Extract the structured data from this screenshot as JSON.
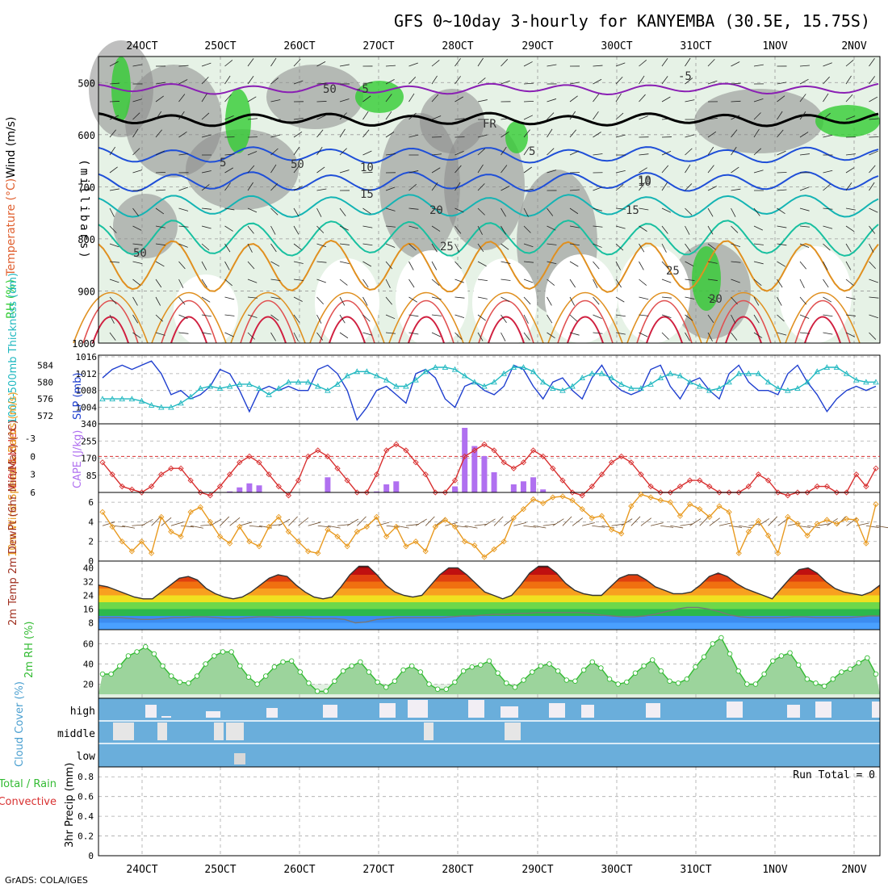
{
  "title": "GFS 0~10day 3-hourly for KANYEMBA (30.5E, 15.75S)",
  "credit": "GrADS: COLA/IGES",
  "colors": {
    "rh_green": "#33cc33",
    "rh_gray": "#8a8a8a",
    "temp_purple": "#8a1fb4",
    "temp_blue": "#1f4fd8",
    "temp_teal": "#14b4b4",
    "temp_orange": "#e09020",
    "temp_red": "#d02040",
    "slp_blue": "#1f3fcf",
    "thick_cyan": "#20b8c0",
    "li_red": "#d83030",
    "cape_purple": "#b070f0",
    "wind_orange": "#e89a20",
    "rh2m_green": "#33bb33",
    "cloud_blue": "#6aaedb"
  },
  "chart_data": [
    {
      "type": "heatmap",
      "name": "upper-air cross-section",
      "x_tick_labels": [
        "24OCT",
        "25OCT",
        "26OCT",
        "27OCT",
        "28OCT",
        "29OCT",
        "30OCT",
        "31OCT",
        "1NOV",
        "2NOV"
      ],
      "ylabel": "(millibars)",
      "yticks": [
        500,
        600,
        700,
        800,
        900,
        1000
      ],
      "yrange": [
        450,
        1000
      ],
      "side_labels": [
        "RH (%)",
        "Temperature (°C)",
        "Wind (m/s)"
      ],
      "temperature_contours": [
        {
          "label": "-5",
          "color_key": "temp_purple"
        },
        {
          "label": "FR",
          "color_key": "none"
        },
        {
          "label": "5",
          "color_key": "temp_blue"
        },
        {
          "label": "10",
          "color_key": "temp_blue"
        },
        {
          "label": "15",
          "color_key": "temp_teal"
        },
        {
          "label": "20",
          "color_key": "temp_teal"
        },
        {
          "label": "25",
          "color_key": "temp_orange"
        }
      ],
      "contour_labels": [
        "-5",
        "FR",
        "5",
        "10",
        "15",
        "20",
        "25",
        "10",
        "-5",
        "5",
        "10",
        "15",
        "25",
        "20",
        "50",
        "50",
        "50"
      ]
    },
    {
      "type": "line",
      "name": "SLP and thickness",
      "left_label": "1000-500mb Thickness (dm)",
      "right_label": "SLP (mb)",
      "left_ticks": [
        "572",
        "576",
        "580",
        "584"
      ],
      "right_ticks": [
        "1004",
        "1008",
        "1012",
        "1016"
      ],
      "series": [
        {
          "name": "SLP (mb)",
          "color_key": "slp_blue",
          "values": [
            1011,
            1013,
            1014,
            1013,
            1014,
            1015,
            1012,
            1007,
            1008,
            1006,
            1007,
            1009,
            1013,
            1012,
            1008,
            1003,
            1008,
            1009,
            1008,
            1009,
            1008,
            1008,
            1013,
            1014,
            1012,
            1008,
            1001,
            1004,
            1008,
            1009,
            1007,
            1005,
            1012,
            1013,
            1011,
            1006,
            1004,
            1009,
            1010,
            1008,
            1007,
            1009,
            1014,
            1013,
            1009,
            1006,
            1010,
            1011,
            1008,
            1006,
            1011,
            1014,
            1010,
            1008,
            1007,
            1008,
            1013,
            1014,
            1009,
            1006,
            1010,
            1011,
            1008,
            1006,
            1012,
            1014,
            1010,
            1008,
            1008,
            1007,
            1012,
            1014,
            1010,
            1007,
            1003,
            1006,
            1008,
            1009,
            1008,
            1009
          ],
          "marker": "none"
        },
        {
          "name": "Thickness (dm)",
          "color_key": "thick_cyan",
          "values": [
            576.0,
            576.0,
            576.0,
            576.0,
            575.5,
            574.5,
            574.0,
            574.0,
            575.0,
            576.5,
            578.5,
            579.0,
            578.5,
            579.0,
            579.5,
            579.5,
            578.5,
            577.0,
            578.5,
            580.0,
            580.0,
            580.0,
            579.0,
            578.0,
            579.5,
            581.5,
            582.5,
            582.5,
            581.5,
            580.5,
            579.0,
            579.0,
            580.5,
            582.5,
            583.5,
            583.5,
            583.0,
            581.5,
            580.0,
            579.0,
            580.0,
            582.0,
            583.5,
            583.5,
            582.5,
            580.0,
            578.5,
            578.0,
            579.0,
            581.0,
            582.0,
            582.0,
            581.0,
            579.5,
            578.5,
            578.5,
            579.5,
            581.0,
            582.0,
            581.5,
            580.0,
            579.0,
            578.0,
            578.5,
            580.0,
            582.0,
            582.0,
            582.0,
            580.0,
            578.5,
            578.0,
            578.5,
            580.0,
            582.5,
            583.5,
            583.5,
            582.0,
            580.5,
            580.0,
            580.0
          ],
          "marker": "triangle"
        }
      ]
    },
    {
      "type": "bar",
      "name": "Lifted Index and CAPE",
      "left_label": "Lifted Index",
      "right_label": "CAPE (J/kg)",
      "left_ticks": [
        "6",
        "3",
        "0",
        "-3"
      ],
      "right_ticks": [
        "85",
        "170",
        "255",
        "340"
      ],
      "series": [
        {
          "name": "Lifted Index",
          "color_key": "li_red",
          "values": [
            1,
            3,
            5,
            5.5,
            6,
            5,
            3,
            2,
            2,
            4,
            6,
            6.5,
            5,
            3,
            1,
            0,
            1,
            3,
            5,
            6.5,
            4,
            0,
            -1,
            0,
            2,
            4,
            6,
            6,
            3,
            -1,
            -2,
            -1,
            1,
            3,
            6,
            6,
            4,
            0,
            -1,
            -2,
            -1,
            1,
            2,
            1,
            -1,
            0,
            2,
            4,
            6,
            6.5,
            5,
            3,
            1,
            0,
            1,
            3,
            5,
            6,
            6,
            5,
            4,
            4,
            5,
            6,
            6,
            6,
            5,
            3,
            4,
            6,
            6.5,
            6,
            6,
            5,
            5,
            6,
            6,
            3,
            5,
            2
          ],
          "marker": "diamond"
        },
        {
          "name": "CAPE (J/kg)",
          "color_key": "cape_purple",
          "values": [
            0,
            0,
            0,
            0,
            0,
            0,
            0,
            0,
            0,
            0,
            0,
            0,
            0,
            5,
            25,
            45,
            35,
            0,
            0,
            0,
            0,
            0,
            0,
            75,
            0,
            0,
            0,
            0,
            5,
            40,
            55,
            0,
            0,
            0,
            0,
            0,
            30,
            320,
            230,
            180,
            100,
            0,
            40,
            55,
            75,
            15,
            0,
            0,
            0,
            0,
            0,
            0,
            0,
            0,
            0,
            0,
            0,
            0,
            0,
            0,
            0,
            0,
            0,
            0,
            0,
            0,
            0,
            0,
            0,
            0,
            0,
            0,
            0,
            0,
            0,
            0,
            0,
            0,
            0,
            0
          ]
        }
      ]
    },
    {
      "type": "line",
      "name": "10m wind",
      "left_label": "10m Wind Speed & Barbs (m/s)",
      "left_ticks": [
        "0",
        "2",
        "4",
        "6"
      ],
      "series": [
        {
          "name": "10m Wind Speed",
          "color_key": "wind_orange",
          "values": [
            5,
            3.5,
            2,
            1,
            2,
            0.8,
            4.5,
            3,
            2.5,
            5,
            5.5,
            4,
            2.5,
            1.8,
            3.5,
            2,
            1.5,
            3.5,
            4.5,
            3,
            2,
            1,
            0.8,
            3.2,
            2.5,
            1.5,
            3,
            3.5,
            4.5,
            2.5,
            3.5,
            1.5,
            2,
            1,
            3.5,
            4.2,
            3.5,
            2,
            1.6,
            0.4,
            1.2,
            2,
            4.4,
            5.3,
            6.3,
            5.9,
            6.5,
            6.6,
            6.2,
            5.3,
            4.4,
            4.6,
            3.2,
            2.8,
            5.6,
            6.8,
            6.5,
            6.2,
            6.0,
            4.6,
            5.8,
            5.3,
            4.5,
            5.6,
            5.0,
            0.8,
            3.0,
            4.1,
            2.6,
            0.8,
            4.5,
            3.8,
            2.6,
            3.8,
            4.2,
            3.8,
            4.3,
            4.2,
            1.8,
            5.8
          ],
          "marker": "diamond"
        }
      ]
    },
    {
      "type": "area",
      "name": "2m temperature",
      "left_label": "2m Temp 2m DewPt (6hr Min/Max) (°C)",
      "left_ticks": [
        "8",
        "16",
        "24",
        "32",
        "40"
      ],
      "series": [
        {
          "name": "2m Temp",
          "color_key": "temp_red",
          "values": [
            30,
            29,
            27,
            25,
            23,
            22,
            22,
            26,
            30,
            34,
            35,
            33,
            28,
            25,
            23,
            22,
            23,
            26,
            30,
            34,
            36,
            35,
            30,
            26,
            23,
            22,
            23,
            29,
            36,
            41,
            41,
            36,
            30,
            26,
            24,
            23,
            24,
            30,
            36,
            40,
            40,
            36,
            31,
            26,
            24,
            22,
            24,
            30,
            37,
            41,
            41,
            37,
            31,
            27,
            25,
            24,
            24,
            29,
            34,
            36,
            36,
            33,
            29,
            27,
            25,
            25,
            26,
            30,
            35,
            37,
            35,
            31,
            28,
            26,
            24,
            22,
            28,
            34,
            39,
            40,
            37,
            32,
            28,
            26,
            25,
            24,
            26,
            30
          ]
        },
        {
          "name": "2m DewPt",
          "color_key": "rh_gray",
          "values": [
            11,
            11,
            11,
            10.5,
            10,
            10,
            10.5,
            11,
            11,
            11.5,
            11.5,
            11,
            10.5,
            10.5,
            11,
            11.5,
            11.5,
            11,
            11,
            11,
            10.5,
            10.5,
            10.5,
            10,
            8,
            8.5,
            10,
            10.5,
            11,
            11,
            11,
            11,
            11,
            11.5,
            12,
            12,
            12.5,
            13,
            13,
            13.5,
            13.5,
            14,
            14,
            14,
            14,
            14,
            13.5,
            12.5,
            12,
            11.5,
            11.5,
            12,
            13,
            14.5,
            16,
            17,
            17,
            16,
            14.5,
            12.5,
            11.5,
            11,
            11,
            11,
            11,
            11.5,
            11.5,
            11,
            11,
            11,
            11,
            11.5,
            12,
            12
          ]
        }
      ]
    },
    {
      "type": "area",
      "name": "2m RH",
      "left_label": "2m RH (%)",
      "left_ticks": [
        "20",
        "40",
        "60"
      ],
      "series": [
        {
          "name": "2m RH",
          "color_key": "rh2m_green",
          "values": [
            30,
            30,
            38,
            48,
            52,
            57,
            50,
            38,
            28,
            22,
            21,
            28,
            40,
            48,
            52,
            52,
            38,
            27,
            20,
            28,
            37,
            42,
            43,
            32,
            21,
            13,
            13,
            23,
            33,
            38,
            42,
            32,
            22,
            17,
            23,
            34,
            38,
            32,
            20,
            15,
            15,
            22,
            33,
            37,
            39,
            43,
            31,
            21,
            17,
            24,
            32,
            38,
            40,
            33,
            24,
            23,
            34,
            42,
            36,
            25,
            20,
            22,
            31,
            38,
            44,
            33,
            23,
            21,
            25,
            37,
            47,
            60,
            66,
            50,
            33,
            20,
            20,
            30,
            43,
            48,
            51,
            39,
            25,
            21,
            18,
            25,
            32,
            35,
            41,
            46,
            30
          ]
        }
      ]
    },
    {
      "type": "heatmap",
      "name": "cloud cover",
      "left_label": "Cloud Cover (%)",
      "row_labels": [
        "high",
        "middle",
        "low"
      ]
    },
    {
      "type": "bar",
      "name": "precipitation",
      "left_label": "3hr Precip (mm)",
      "legend": [
        "Total / Rain",
        "Convective"
      ],
      "left_ticks": [
        "0",
        "0.2",
        "0.4",
        "0.6",
        "0.8"
      ],
      "annotation": "Run Total = 0",
      "x_tick_labels": [
        "24OCT",
        "25OCT",
        "26OCT",
        "27OCT",
        "28OCT",
        "29OCT",
        "30OCT",
        "31OCT",
        "1NOV",
        "2NOV"
      ],
      "values": []
    }
  ]
}
